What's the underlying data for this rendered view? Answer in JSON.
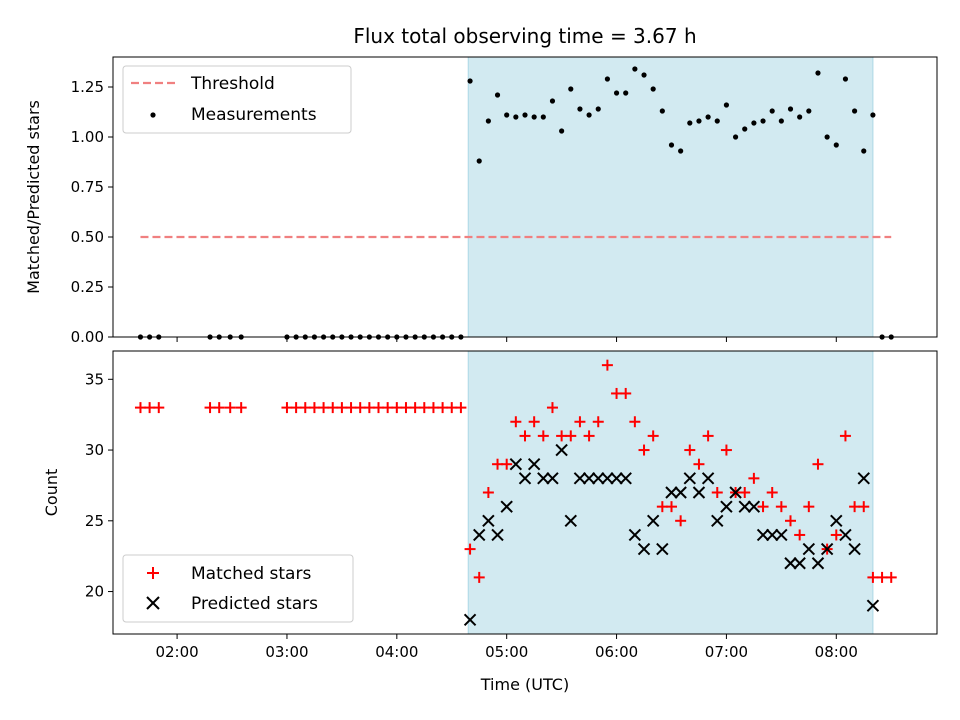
{
  "chart_data": {
    "title": "Flux total observing time = 3.67 h",
    "xlabel": "Time (UTC)",
    "x_ticks": [
      "02:00",
      "03:00",
      "04:00",
      "05:00",
      "06:00",
      "07:00",
      "08:00"
    ],
    "x_range": [
      "01:25",
      "08:55"
    ],
    "highlight_span": [
      "04:39",
      "08:20"
    ],
    "highlight_color": "#add8e6",
    "panels": [
      {
        "type": "scatter",
        "ylabel": "Matched/Predicted stars",
        "ylim": [
          0,
          1.4
        ],
        "y_ticks": [
          "0.00",
          "0.25",
          "0.50",
          "0.75",
          "1.00",
          "1.25"
        ],
        "legend_position": "top-left",
        "threshold": {
          "name": "Threshold",
          "value": 0.5,
          "x_range": [
            "01:40",
            "08:30"
          ],
          "color": "#f08080"
        },
        "series": [
          {
            "name": "Measurements",
            "color": "#000000",
            "points": [
              [
                "01:40",
                0.0
              ],
              [
                "01:45",
                0.0
              ],
              [
                "01:50",
                0.0
              ],
              [
                "02:18",
                0.0
              ],
              [
                "02:23",
                0.0
              ],
              [
                "02:29",
                0.0
              ],
              [
                "02:35",
                0.0
              ],
              [
                "03:00",
                0.0
              ],
              [
                "03:05",
                0.0
              ],
              [
                "03:10",
                0.0
              ],
              [
                "03:15",
                0.0
              ],
              [
                "03:20",
                0.0
              ],
              [
                "03:25",
                0.0
              ],
              [
                "03:30",
                0.0
              ],
              [
                "03:35",
                0.0
              ],
              [
                "03:40",
                0.0
              ],
              [
                "03:45",
                0.0
              ],
              [
                "03:50",
                0.0
              ],
              [
                "03:55",
                0.0
              ],
              [
                "04:00",
                0.0
              ],
              [
                "04:05",
                0.0
              ],
              [
                "04:10",
                0.0
              ],
              [
                "04:15",
                0.0
              ],
              [
                "04:20",
                0.0
              ],
              [
                "04:25",
                0.0
              ],
              [
                "04:30",
                0.0
              ],
              [
                "04:35",
                0.0
              ],
              [
                "04:40",
                1.28
              ],
              [
                "04:45",
                0.88
              ],
              [
                "04:50",
                1.08
              ],
              [
                "04:55",
                1.21
              ],
              [
                "05:00",
                1.11
              ],
              [
                "05:05",
                1.1
              ],
              [
                "05:10",
                1.11
              ],
              [
                "05:15",
                1.1
              ],
              [
                "05:20",
                1.1
              ],
              [
                "05:25",
                1.18
              ],
              [
                "05:30",
                1.03
              ],
              [
                "05:35",
                1.24
              ],
              [
                "05:40",
                1.14
              ],
              [
                "05:45",
                1.11
              ],
              [
                "05:50",
                1.14
              ],
              [
                "05:55",
                1.29
              ],
              [
                "06:00",
                1.22
              ],
              [
                "06:05",
                1.22
              ],
              [
                "06:10",
                1.34
              ],
              [
                "06:15",
                1.31
              ],
              [
                "06:20",
                1.24
              ],
              [
                "06:25",
                1.13
              ],
              [
                "06:30",
                0.96
              ],
              [
                "06:35",
                0.93
              ],
              [
                "06:40",
                1.07
              ],
              [
                "06:45",
                1.08
              ],
              [
                "06:50",
                1.1
              ],
              [
                "06:55",
                1.08
              ],
              [
                "07:00",
                1.16
              ],
              [
                "07:05",
                1.0
              ],
              [
                "07:10",
                1.04
              ],
              [
                "07:15",
                1.07
              ],
              [
                "07:20",
                1.08
              ],
              [
                "07:25",
                1.13
              ],
              [
                "07:30",
                1.08
              ],
              [
                "07:35",
                1.14
              ],
              [
                "07:40",
                1.1
              ],
              [
                "07:45",
                1.13
              ],
              [
                "07:50",
                1.32
              ],
              [
                "07:55",
                1.0
              ],
              [
                "08:00",
                0.96
              ],
              [
                "08:05",
                1.29
              ],
              [
                "08:10",
                1.13
              ],
              [
                "08:15",
                0.93
              ],
              [
                "08:20",
                1.11
              ],
              [
                "08:25",
                0.0
              ],
              [
                "08:30",
                0.0
              ]
            ]
          }
        ]
      },
      {
        "type": "scatter",
        "ylabel": "Count",
        "ylim": [
          17,
          37
        ],
        "y_ticks": [
          "20",
          "25",
          "30",
          "35"
        ],
        "legend_position": "bottom-left",
        "series": [
          {
            "name": "Matched stars",
            "marker": "plus",
            "color": "#ff0000",
            "points": [
              [
                "01:40",
                33
              ],
              [
                "01:45",
                33
              ],
              [
                "01:50",
                33
              ],
              [
                "02:18",
                33
              ],
              [
                "02:23",
                33
              ],
              [
                "02:29",
                33
              ],
              [
                "02:35",
                33
              ],
              [
                "03:00",
                33
              ],
              [
                "03:05",
                33
              ],
              [
                "03:10",
                33
              ],
              [
                "03:15",
                33
              ],
              [
                "03:20",
                33
              ],
              [
                "03:25",
                33
              ],
              [
                "03:30",
                33
              ],
              [
                "03:35",
                33
              ],
              [
                "03:40",
                33
              ],
              [
                "03:45",
                33
              ],
              [
                "03:50",
                33
              ],
              [
                "03:55",
                33
              ],
              [
                "04:00",
                33
              ],
              [
                "04:05",
                33
              ],
              [
                "04:10",
                33
              ],
              [
                "04:15",
                33
              ],
              [
                "04:20",
                33
              ],
              [
                "04:25",
                33
              ],
              [
                "04:30",
                33
              ],
              [
                "04:35",
                33
              ],
              [
                "04:40",
                23
              ],
              [
                "04:45",
                21
              ],
              [
                "04:50",
                27
              ],
              [
                "04:55",
                29
              ],
              [
                "05:00",
                29
              ],
              [
                "05:05",
                32
              ],
              [
                "05:10",
                31
              ],
              [
                "05:15",
                32
              ],
              [
                "05:20",
                31
              ],
              [
                "05:25",
                33
              ],
              [
                "05:30",
                31
              ],
              [
                "05:35",
                31
              ],
              [
                "05:40",
                32
              ],
              [
                "05:45",
                31
              ],
              [
                "05:50",
                32
              ],
              [
                "05:55",
                36
              ],
              [
                "06:00",
                34
              ],
              [
                "06:05",
                34
              ],
              [
                "06:10",
                32
              ],
              [
                "06:15",
                30
              ],
              [
                "06:20",
                31
              ],
              [
                "06:25",
                26
              ],
              [
                "06:30",
                26
              ],
              [
                "06:35",
                25
              ],
              [
                "06:40",
                30
              ],
              [
                "06:45",
                29
              ],
              [
                "06:50",
                31
              ],
              [
                "06:55",
                27
              ],
              [
                "07:00",
                30
              ],
              [
                "07:05",
                27
              ],
              [
                "07:10",
                27
              ],
              [
                "07:15",
                28
              ],
              [
                "07:20",
                26
              ],
              [
                "07:25",
                27
              ],
              [
                "07:30",
                26
              ],
              [
                "07:35",
                25
              ],
              [
                "07:40",
                24
              ],
              [
                "07:45",
                26
              ],
              [
                "07:50",
                29
              ],
              [
                "07:55",
                23
              ],
              [
                "08:00",
                24
              ],
              [
                "08:05",
                31
              ],
              [
                "08:10",
                26
              ],
              [
                "08:15",
                26
              ],
              [
                "08:20",
                21
              ],
              [
                "08:25",
                21
              ],
              [
                "08:30",
                21
              ]
            ]
          },
          {
            "name": "Predicted stars",
            "marker": "x",
            "color": "#000000",
            "points": [
              [
                "04:40",
                18
              ],
              [
                "04:45",
                24
              ],
              [
                "04:50",
                25
              ],
              [
                "04:55",
                24
              ],
              [
                "05:00",
                26
              ],
              [
                "05:05",
                29
              ],
              [
                "05:10",
                28
              ],
              [
                "05:15",
                29
              ],
              [
                "05:20",
                28
              ],
              [
                "05:25",
                28
              ],
              [
                "05:30",
                30
              ],
              [
                "05:35",
                25
              ],
              [
                "05:40",
                28
              ],
              [
                "05:45",
                28
              ],
              [
                "05:50",
                28
              ],
              [
                "05:55",
                28
              ],
              [
                "06:00",
                28
              ],
              [
                "06:05",
                28
              ],
              [
                "06:10",
                24
              ],
              [
                "06:15",
                23
              ],
              [
                "06:20",
                25
              ],
              [
                "06:25",
                23
              ],
              [
                "06:30",
                27
              ],
              [
                "06:35",
                27
              ],
              [
                "06:40",
                28
              ],
              [
                "06:45",
                27
              ],
              [
                "06:50",
                28
              ],
              [
                "06:55",
                25
              ],
              [
                "07:00",
                26
              ],
              [
                "07:05",
                27
              ],
              [
                "07:10",
                26
              ],
              [
                "07:15",
                26
              ],
              [
                "07:20",
                24
              ],
              [
                "07:25",
                24
              ],
              [
                "07:30",
                24
              ],
              [
                "07:35",
                22
              ],
              [
                "07:40",
                22
              ],
              [
                "07:45",
                23
              ],
              [
                "07:50",
                22
              ],
              [
                "07:55",
                23
              ],
              [
                "08:00",
                25
              ],
              [
                "08:05",
                24
              ],
              [
                "08:10",
                23
              ],
              [
                "08:15",
                28
              ],
              [
                "08:20",
                19
              ]
            ]
          }
        ]
      }
    ]
  }
}
